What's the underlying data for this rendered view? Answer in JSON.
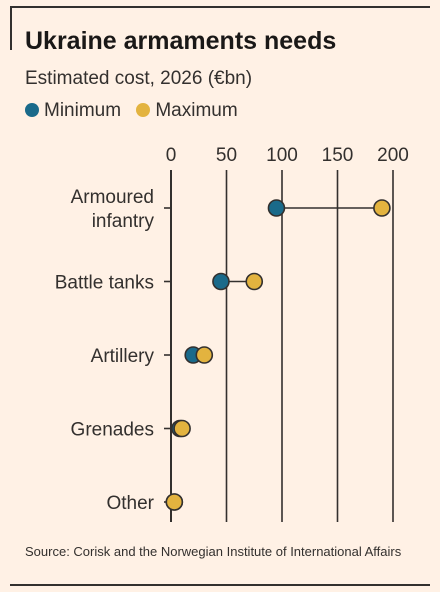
{
  "title": "Ukraine armaments needs",
  "subtitle": "Estimated cost, 2026 (€bn)",
  "source": "Source: Corisk and the Norwegian Institute of International Affairs",
  "colors": {
    "min": "#1a6a8a",
    "max": "#e3b33f",
    "axis": "#33302e",
    "bg": "#fff1e5"
  },
  "chart_data": {
    "type": "scatter",
    "title": "Ukraine armaments needs",
    "subtitle": "Estimated cost, 2026 (€bn)",
    "xlim": [
      0,
      200
    ],
    "xticks": [
      0,
      50,
      100,
      150,
      200
    ],
    "grid": true,
    "legend_position": "top-left",
    "categories": [
      [
        "Armoured",
        "infantry"
      ],
      [
        "Battle tanks"
      ],
      [
        "Artillery"
      ],
      [
        "Grenades"
      ],
      [
        "Other"
      ]
    ],
    "series": [
      {
        "name": "Minimum",
        "color": "#1a6a8a",
        "values": [
          95,
          45,
          20,
          8,
          3
        ]
      },
      {
        "name": "Maximum",
        "color": "#e3b33f",
        "values": [
          190,
          75,
          30,
          10,
          3
        ]
      }
    ]
  }
}
